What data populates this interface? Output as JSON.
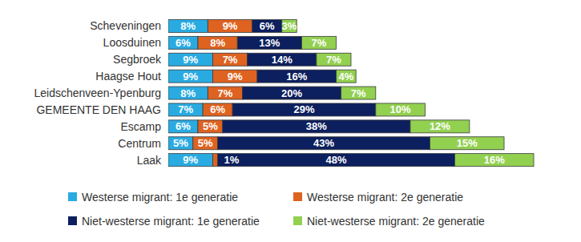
{
  "chart_data": {
    "type": "bar",
    "orientation": "horizontal",
    "stacked": true,
    "data_labels": true,
    "tick_labels": "y",
    "grid": false,
    "legend": "bottom",
    "categories": [
      "Scheveningen",
      "Loosduinen",
      "Segbroek",
      "Haagse Hout",
      "Leidschenveen-Ypenburg",
      "GEMEENTE DEN HAAG",
      "Escamp",
      "Centrum",
      "Laak"
    ],
    "series": [
      {
        "name": "Westerse migrant: 1e generatie",
        "color": "#29abe2",
        "values": [
          8,
          6,
          9,
          9,
          8,
          7,
          6,
          5,
          9
        ],
        "value_labels": [
          "8%",
          "6%",
          "9%",
          "9%",
          "8%",
          "7%",
          "6%",
          "5%",
          "9%"
        ]
      },
      {
        "name": "Westerse migrant: 2e generatie",
        "color": "#de6220",
        "values": [
          9,
          8,
          7,
          9,
          7,
          6,
          5,
          5,
          1
        ],
        "value_labels": [
          "9%",
          "8%",
          "7%",
          "9%",
          "7%",
          "6%",
          "5%",
          "5%",
          "1%"
        ]
      },
      {
        "name": "Niet-westerse migrant: 1e generatie",
        "color": "#0c1f5e",
        "values": [
          6,
          13,
          14,
          16,
          20,
          29,
          38,
          43,
          48
        ],
        "value_labels": [
          "6%",
          "13%",
          "14%",
          "16%",
          "20%",
          "29%",
          "38%",
          "43%",
          "48%"
        ]
      },
      {
        "name": "Niet-westerse migrant: 2e generatie",
        "color": "#92d050",
        "values": [
          3,
          7,
          7,
          4,
          7,
          10,
          12,
          15,
          16
        ],
        "value_labels": [
          "3%",
          "7%",
          "7%",
          "4%",
          "7%",
          "10%",
          "12%",
          "15%",
          "16%"
        ]
      }
    ]
  }
}
